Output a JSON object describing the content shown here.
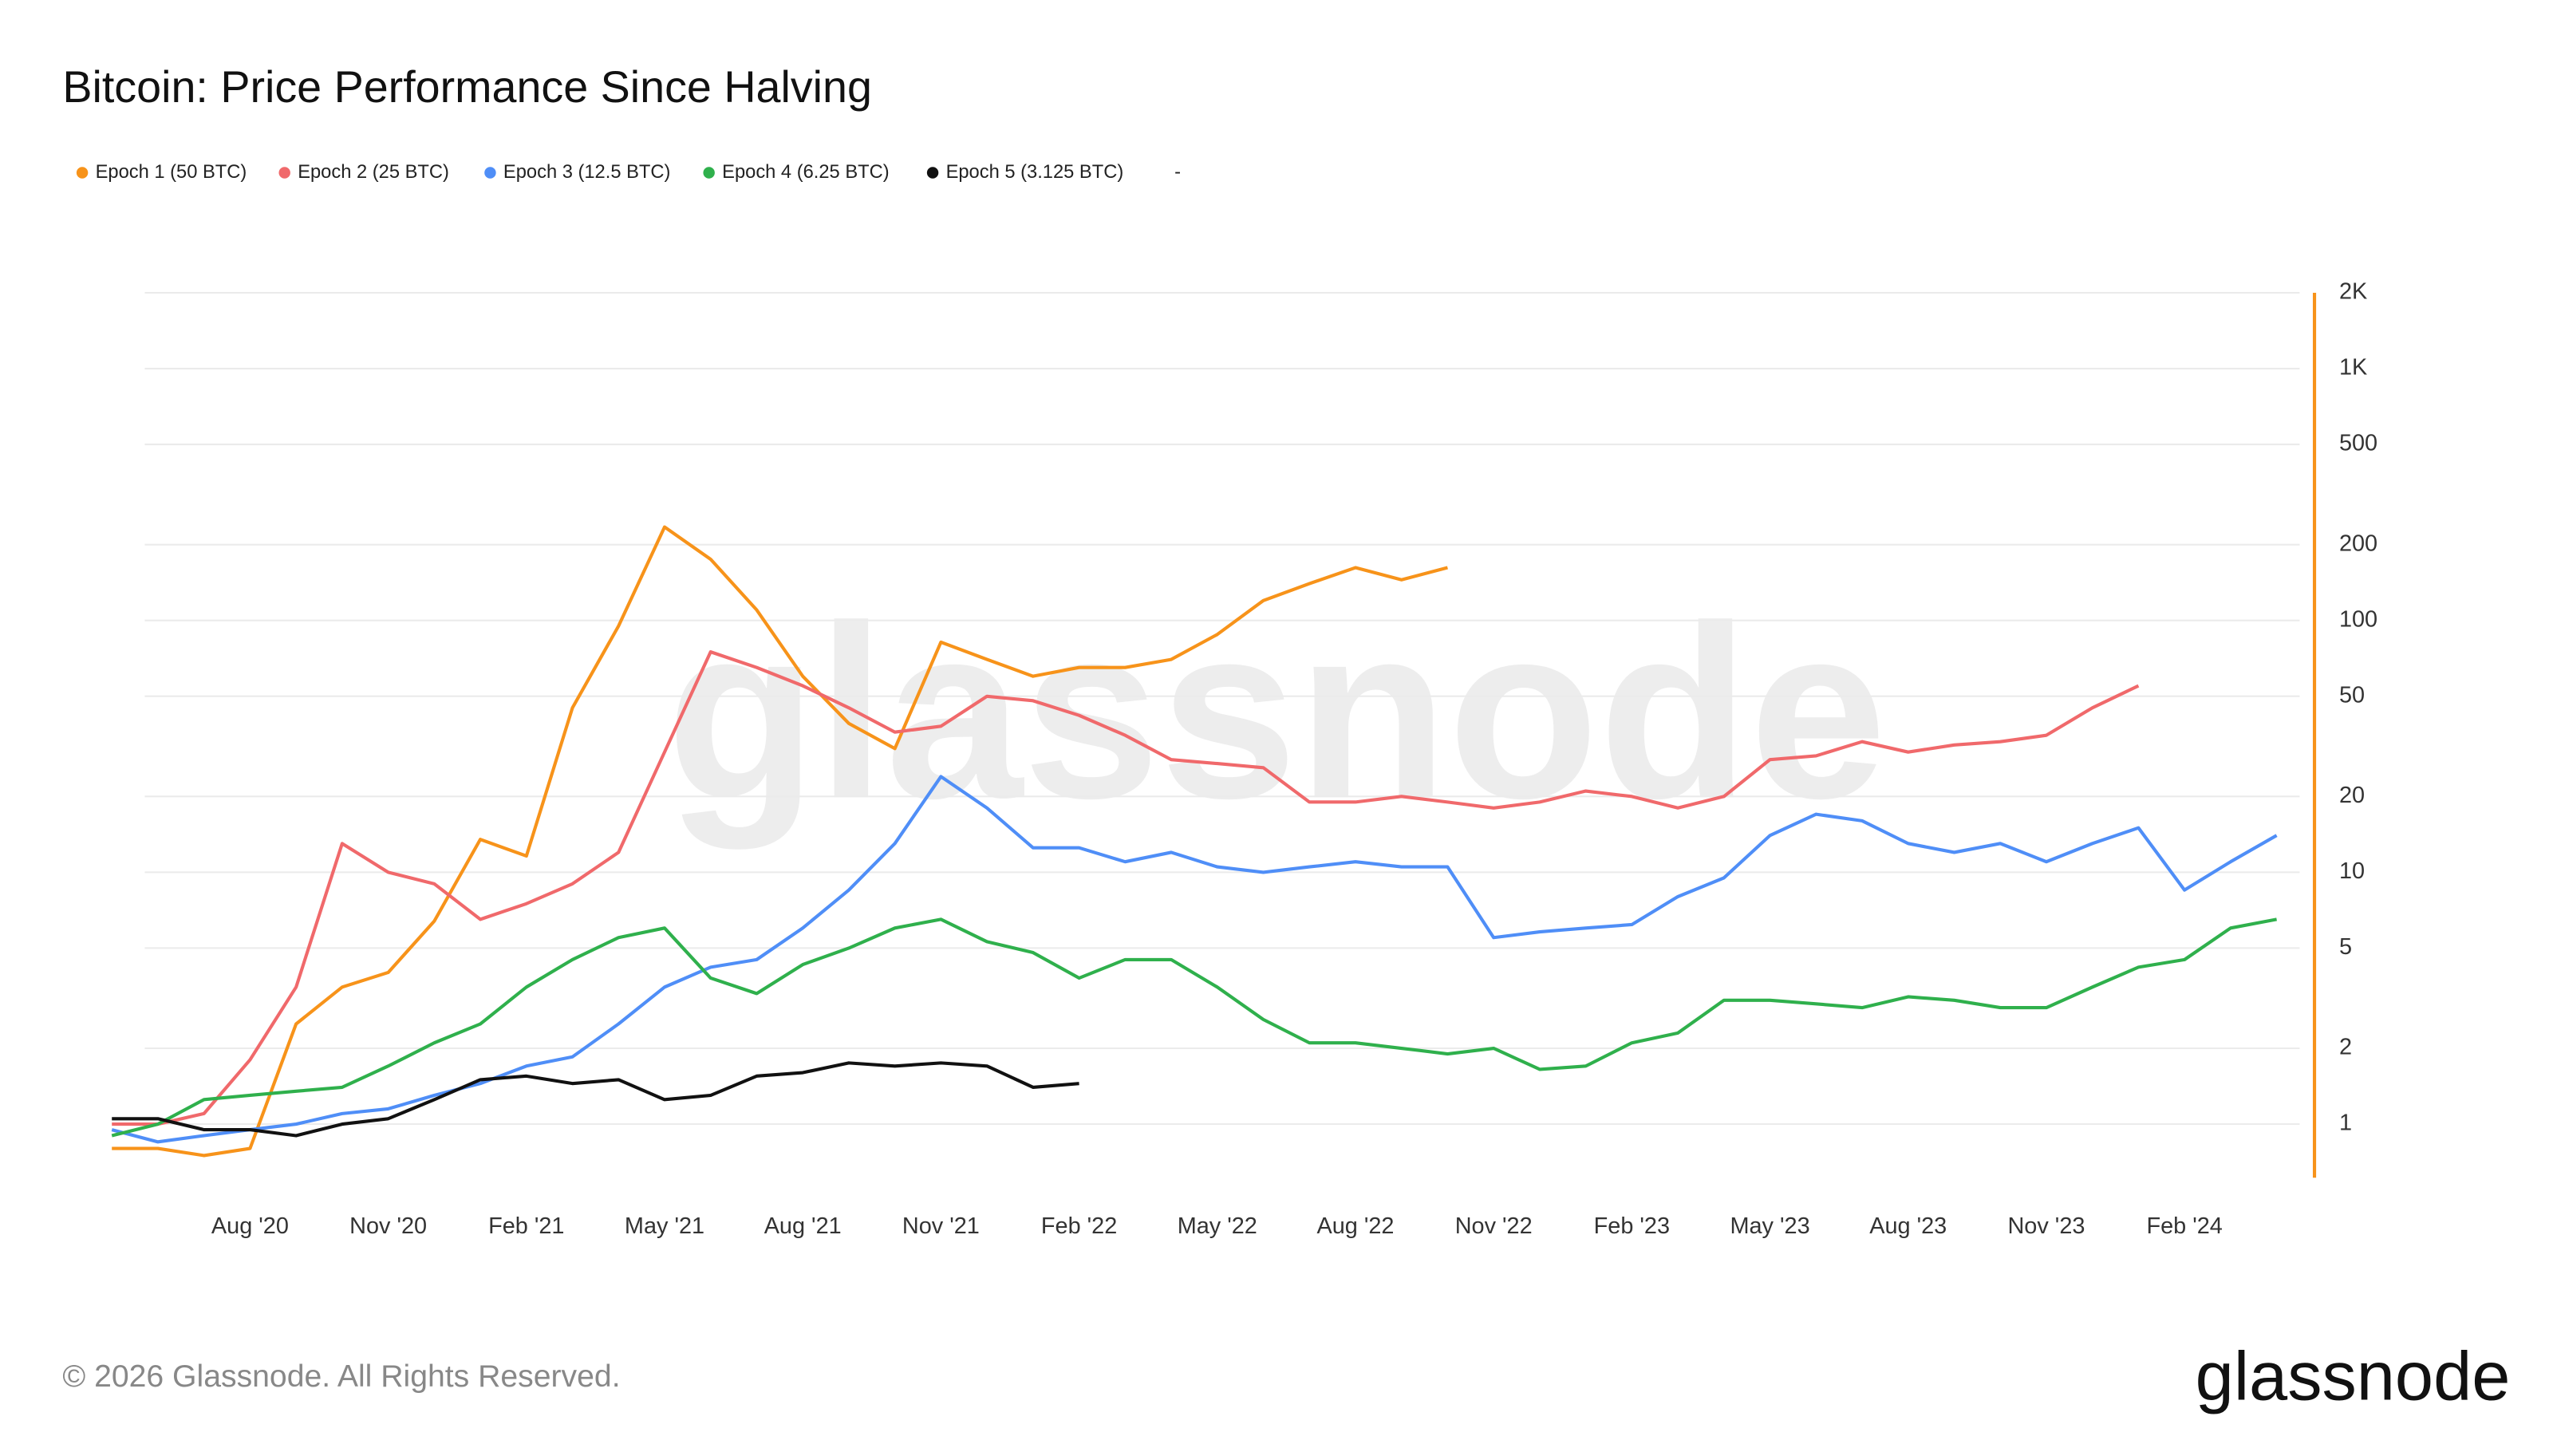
{
  "chart_data": {
    "type": "line",
    "title": "Bitcoin: Price Performance Since Halving",
    "log_scale": true,
    "y_axis_side": "right",
    "legend_note": "-",
    "x": [
      "2020-05",
      "2020-06",
      "2020-07",
      "2020-08",
      "2020-09",
      "2020-10",
      "2020-11",
      "2020-12",
      "2021-01",
      "2021-02",
      "2021-03",
      "2021-04",
      "2021-05",
      "2021-06",
      "2021-07",
      "2021-08",
      "2021-09",
      "2021-10",
      "2021-11",
      "2021-12",
      "2022-01",
      "2022-02",
      "2022-03",
      "2022-04",
      "2022-05",
      "2022-06",
      "2022-07",
      "2022-08",
      "2022-09",
      "2022-10",
      "2022-11",
      "2022-12",
      "2023-01",
      "2023-02",
      "2023-03",
      "2023-04",
      "2023-05",
      "2023-06",
      "2023-07",
      "2023-08",
      "2023-09",
      "2023-10",
      "2023-11",
      "2023-12",
      "2024-01",
      "2024-02",
      "2024-03",
      "2024-04"
    ],
    "xlim": [
      "2020-05",
      "2024-05"
    ],
    "xticks": [
      {
        "value": "2020-08",
        "label": "Aug '20"
      },
      {
        "value": "2020-11",
        "label": "Nov '20"
      },
      {
        "value": "2021-02",
        "label": "Feb '21"
      },
      {
        "value": "2021-05",
        "label": "May '21"
      },
      {
        "value": "2021-08",
        "label": "Aug '21"
      },
      {
        "value": "2021-11",
        "label": "Nov '21"
      },
      {
        "value": "2022-02",
        "label": "Feb '22"
      },
      {
        "value": "2022-05",
        "label": "May '22"
      },
      {
        "value": "2022-08",
        "label": "Aug '22"
      },
      {
        "value": "2022-11",
        "label": "Nov '22"
      },
      {
        "value": "2023-02",
        "label": "Feb '23"
      },
      {
        "value": "2023-05",
        "label": "May '23"
      },
      {
        "value": "2023-08",
        "label": "Aug '23"
      },
      {
        "value": "2023-11",
        "label": "Nov '23"
      },
      {
        "value": "2024-02",
        "label": "Feb '24"
      }
    ],
    "ylim": [
      0.67,
      2000
    ],
    "yticks": [
      1,
      2,
      5,
      10,
      20,
      50,
      100,
      200,
      500,
      {
        "value": 1000,
        "label": "1K"
      },
      {
        "value": 2000,
        "label": "2K"
      }
    ],
    "grid": true,
    "series": [
      {
        "name": "Epoch 1 (50 BTC)",
        "color": "#f7931a",
        "values": [
          0.8,
          0.8,
          0.75,
          0.8,
          2.5,
          3.5,
          4,
          6.4,
          13.5,
          11.6,
          45,
          95,
          235,
          175,
          110,
          60,
          39,
          31,
          82,
          70,
          60,
          65,
          65,
          70,
          88,
          120,
          140,
          162,
          145,
          162,
          null,
          null,
          null,
          null,
          null,
          null,
          null,
          null,
          null,
          null,
          null,
          null,
          null,
          null,
          null,
          null,
          null,
          null
        ]
      },
      {
        "name": "Epoch 2 (25 BTC)",
        "color": "#f0696b",
        "values": [
          1.0,
          1.0,
          1.1,
          1.8,
          3.5,
          13,
          10,
          9,
          6.5,
          7.5,
          9,
          12,
          30,
          75,
          65,
          55,
          45,
          36,
          38,
          50,
          48,
          42,
          35,
          28,
          27,
          26,
          19,
          19,
          20,
          19,
          18,
          19,
          21,
          20,
          18,
          20,
          28,
          29,
          33,
          30,
          32,
          33,
          35,
          45,
          55,
          null,
          null,
          null
        ]
      },
      {
        "name": "Epoch 3 (12.5 BTC)",
        "color": "#4f8ef7",
        "values": [
          0.95,
          0.85,
          0.9,
          0.95,
          1.0,
          1.1,
          1.15,
          1.3,
          1.45,
          1.7,
          1.85,
          2.5,
          3.5,
          4.2,
          4.5,
          6.0,
          8.5,
          13,
          24,
          18,
          12.5,
          12.5,
          11,
          12,
          10.5,
          10,
          10.5,
          11,
          10.5,
          10.5,
          5.5,
          5.8,
          6,
          6.2,
          8,
          9.5,
          14,
          17,
          16,
          13,
          12,
          13,
          11,
          13,
          15,
          8.5,
          11,
          14
        ]
      },
      {
        "name": "Epoch 4 (6.25 BTC)",
        "color": "#2fb04c",
        "values": [
          0.9,
          1.0,
          1.25,
          1.3,
          1.35,
          1.4,
          1.7,
          2.1,
          2.5,
          3.5,
          4.5,
          5.5,
          6.0,
          3.8,
          3.3,
          4.3,
          5.0,
          6.0,
          6.5,
          5.3,
          4.8,
          3.8,
          4.5,
          4.5,
          3.5,
          2.6,
          2.1,
          2.1,
          2.0,
          1.9,
          2.0,
          1.65,
          1.7,
          2.1,
          2.3,
          3.1,
          3.1,
          3.0,
          2.9,
          3.2,
          3.1,
          2.9,
          2.9,
          3.5,
          4.2,
          4.5,
          6.0,
          6.5
        ]
      },
      {
        "name": "Epoch 5 (3.125 BTC)",
        "color": "#111111",
        "values": [
          1.05,
          1.05,
          0.95,
          0.95,
          0.9,
          1.0,
          1.05,
          1.25,
          1.5,
          1.55,
          1.45,
          1.5,
          1.25,
          1.3,
          1.55,
          1.6,
          1.75,
          1.7,
          1.75,
          1.7,
          1.4,
          1.45,
          null,
          null,
          null,
          null,
          null,
          null,
          null,
          null,
          null,
          null,
          null,
          null,
          null,
          null,
          null,
          null,
          null,
          null,
          null,
          null,
          null,
          null,
          null,
          null,
          null,
          null
        ]
      }
    ]
  },
  "watermark": "glassnode",
  "footer": "© 2026 Glassnode. All Rights Reserved.",
  "logo": "glassnode"
}
